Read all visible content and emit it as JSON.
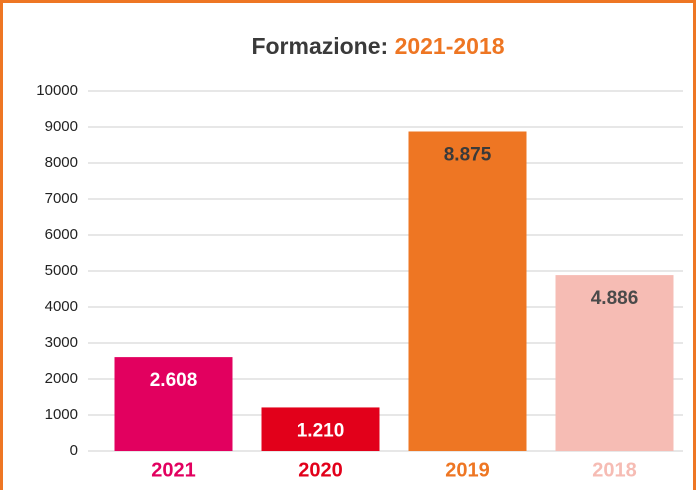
{
  "chart_data": {
    "type": "bar",
    "title": "Formazione:",
    "title_highlight": "2021-2018",
    "categories": [
      "2021",
      "2020",
      "2019",
      "2018"
    ],
    "values": [
      2608,
      1210,
      8875,
      4886
    ],
    "value_labels": [
      "2.608",
      "1.210",
      "8.875",
      "4.886"
    ],
    "colors": [
      "#e2005f",
      "#e2001a",
      "#ee7623",
      "#f6bcb4"
    ],
    "value_label_colors": [
      "#ffffff",
      "#ffffff",
      "#3a3a3a",
      "#4a4a4a"
    ],
    "highlight_color": "#ee7623",
    "ylim": [
      0,
      10000
    ],
    "yticks": [
      0,
      1000,
      2000,
      3000,
      4000,
      5000,
      6000,
      7000,
      8000,
      9000,
      10000
    ],
    "grid": true
  }
}
